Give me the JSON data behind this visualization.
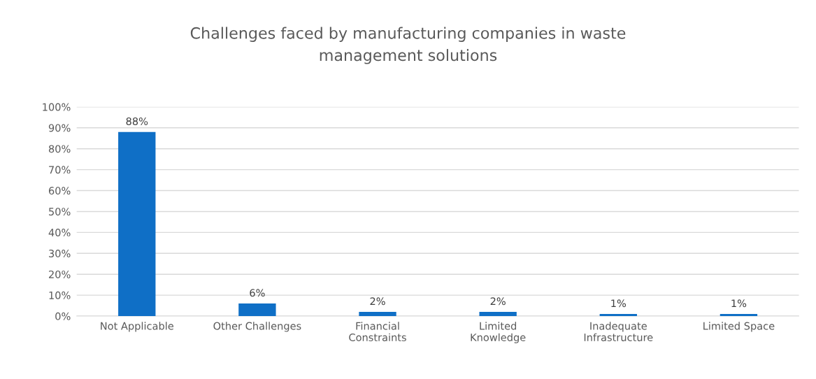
{
  "chart_data": {
    "type": "bar",
    "title": "Challenges faced by manufacturing companies in waste\nmanagement solutions",
    "categories": [
      "Not Applicable",
      "Other Challenges",
      "Financial\nConstraints",
      "Limited\nKnowledge",
      "Inadequate\nInfrastructure",
      "Limited Space"
    ],
    "values": [
      88,
      6,
      2,
      2,
      1,
      1
    ],
    "value_labels": [
      "88%",
      "6%",
      "2%",
      "2%",
      "1%",
      "1%"
    ],
    "color": "#0f6fc6",
    "ylim": [
      0,
      100
    ],
    "yticks": [
      {
        "value": 0,
        "label": "0%"
      },
      {
        "value": 10,
        "label": "10%"
      },
      {
        "value": 20,
        "label": "20%"
      },
      {
        "value": 30,
        "label": "30%"
      },
      {
        "value": 40,
        "label": "40%"
      },
      {
        "value": 50,
        "label": "50%"
      },
      {
        "value": 60,
        "label": "60%"
      },
      {
        "value": 70,
        "label": "70%"
      },
      {
        "value": 80,
        "label": "80%"
      },
      {
        "value": 90,
        "label": "90%"
      },
      {
        "value": 100,
        "label": "100%"
      }
    ],
    "grid": "y"
  }
}
